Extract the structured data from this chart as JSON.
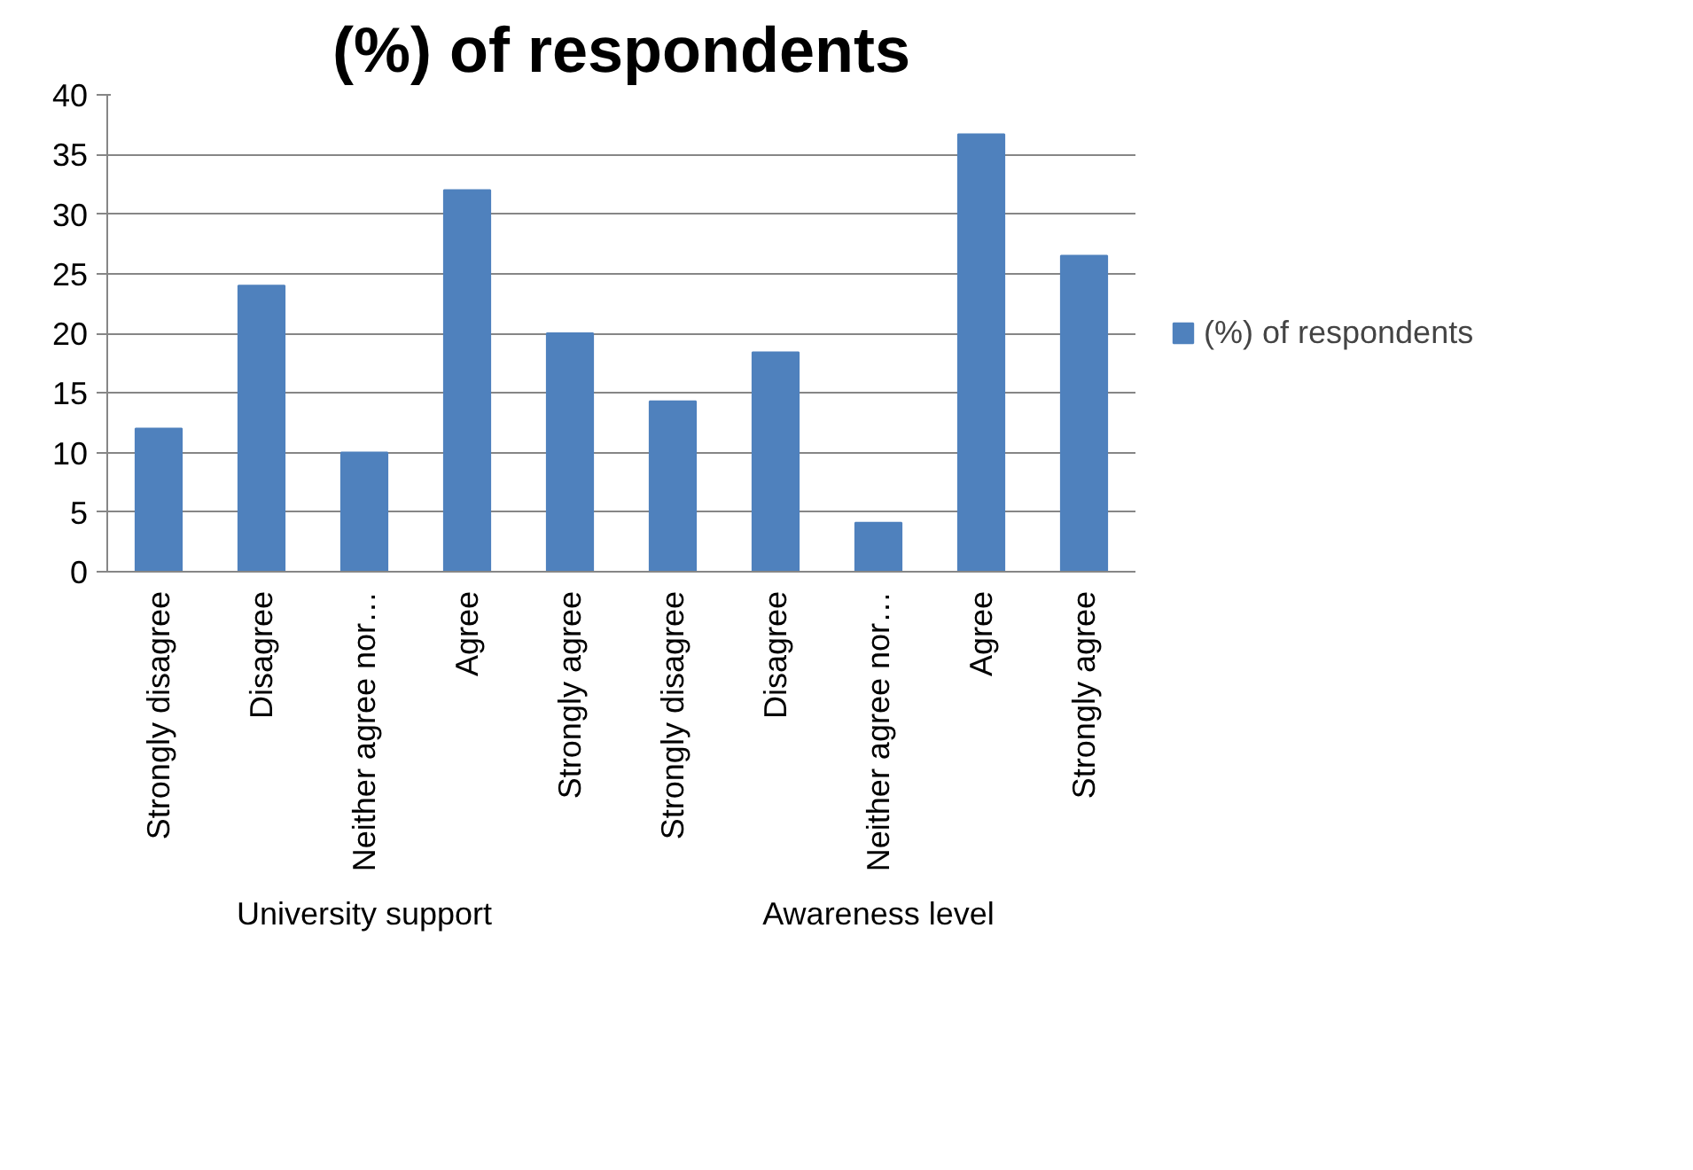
{
  "chart_data": {
    "type": "bar",
    "title": "(%) of respondents",
    "categories": [
      "Strongly disagree",
      "Disagree",
      "Neither agree nor…",
      "Agree",
      "Strongly agree",
      "Strongly disagree",
      "Disagree",
      "Neither agree nor…",
      "Agree",
      "Strongly agree"
    ],
    "series": [
      {
        "name": "(%) of respondents",
        "color": "#4f81bd",
        "values": [
          12,
          24,
          10,
          32,
          20,
          14.3,
          18.4,
          4.1,
          36.7,
          26.5
        ]
      }
    ],
    "annotations": [
      "University support",
      "Awareness level"
    ],
    "ylim": [
      0,
      40
    ],
    "yticks": [
      0,
      5,
      10,
      15,
      20,
      25,
      30,
      35,
      40
    ],
    "grid": "y",
    "legend": "right"
  }
}
